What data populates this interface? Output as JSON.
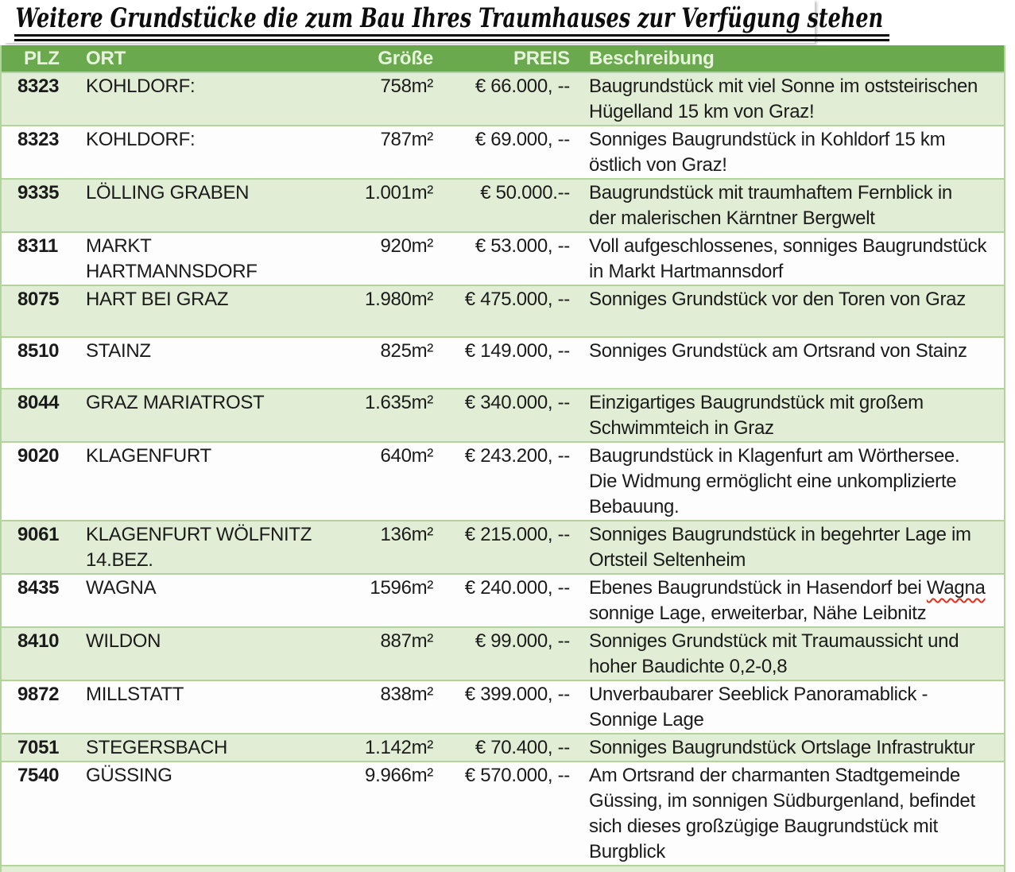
{
  "title": "Weitere Grundstücke die zum Bau Ihres Traumhauses zur Verfügung stehen",
  "colors": {
    "header_bg": "#6ba94e",
    "header_text": "#e7f3dc",
    "band_bg": "#e1eed5",
    "border": "#b2d49c",
    "text": "#1b1b1b",
    "spellcheck": "#e0301e"
  },
  "table": {
    "columns": [
      "PLZ",
      "ORT",
      "Größe",
      "PREIS",
      "Beschreibung"
    ],
    "rows": [
      {
        "plz": "8323",
        "ort": "KOHLDORF:",
        "size": "758m²",
        "price": "€ 66.000, --",
        "desc": "Baugrundstück mit viel Sonne im oststeirischen\nHügelland 15 km von Graz!"
      },
      {
        "plz": "8323",
        "ort": "KOHLDORF:",
        "size": "787m²",
        "price": "€ 69.000, --",
        "desc": "Sonniges Baugrundstück in Kohldorf 15 km\nöstlich von Graz!"
      },
      {
        "plz": "9335",
        "ort": "LÖLLING GRABEN",
        "size": "1.001m²",
        "price": "€ 50.000.--",
        "desc": "Baugrundstück mit traumhaftem Fernblick in\nder malerischen Kärntner Bergwelt"
      },
      {
        "plz": "8311",
        "ort": "MARKT HARTMANNSDORF",
        "size": "920m²",
        "price": "€ 53.000, --",
        "desc": "Voll aufgeschlossenes, sonniges Baugrundstück\nin Markt Hartmannsdorf"
      },
      {
        "plz": "8075",
        "ort": "HART BEI GRAZ",
        "size": "1.980m²",
        "price": "€ 475.000, --",
        "desc": "Sonniges Grundstück vor den Toren von Graz"
      },
      {
        "plz": "8510",
        "ort": "STAINZ",
        "size": "825m²",
        "price": "€ 149.000, --",
        "desc": "Sonniges Grundstück am Ortsrand von Stainz"
      },
      {
        "plz": "8044",
        "ort": "GRAZ MARIATROST",
        "size": "1.635m²",
        "price": "€ 340.000, --",
        "desc": "Einzigartiges Baugrundstück mit großem\nSchwimmteich in Graz"
      },
      {
        "plz": "9020",
        "ort": "KLAGENFURT",
        "size": "640m²",
        "price": "€ 243.200, --",
        "desc": "Baugrundstück in Klagenfurt am Wörthersee.\nDie Widmung ermöglicht eine unkomplizierte\nBebauung."
      },
      {
        "plz": "9061",
        "ort": "KLAGENFURT WÖLFNITZ\n14.BEZ.",
        "size": "136m²",
        "price": "€ 215.000, --",
        "desc": "Sonniges Baugrundstück in begehrter Lage im\nOrtsteil Seltenheim"
      },
      {
        "plz": "8435",
        "ort": "WAGNA",
        "size": "1596m²",
        "price": "€ 240.000, --",
        "desc": "Ebenes Baugrundstück in Hasendorf bei Wagna\nsonnige Lage, erweiterbar, Nähe Leibnitz",
        "misspelled": "Wagna"
      },
      {
        "plz": "8410",
        "ort": "WILDON",
        "size": "887m²",
        "price": "€ 99.000, --",
        "desc": "Sonniges Grundstück mit Traumaussicht und\nhoher Baudichte 0,2-0,8"
      },
      {
        "plz": "9872",
        "ort": "MILLSTATT",
        "size": "838m²",
        "price": "€ 399.000, --",
        "desc": "Unverbaubarer Seeblick Panoramablick -\nSonnige Lage"
      },
      {
        "plz": "7051",
        "ort": "STEGERSBACH",
        "size": "1.142m²",
        "price": "€ 70.400, --",
        "desc": "Sonniges Baugrundstück Ortslage Infrastruktur"
      },
      {
        "plz": "7540",
        "ort": "GÜSSING",
        "size": "9.966m²",
        "price": "€ 570.000, --",
        "desc": "Am Ortsrand der charmanten Stadtgemeinde\nGüssing, im sonnigen Südburgenland, befindet\nsich dieses großzügige Baugrundstück mit\nBurgblick"
      }
    ]
  }
}
